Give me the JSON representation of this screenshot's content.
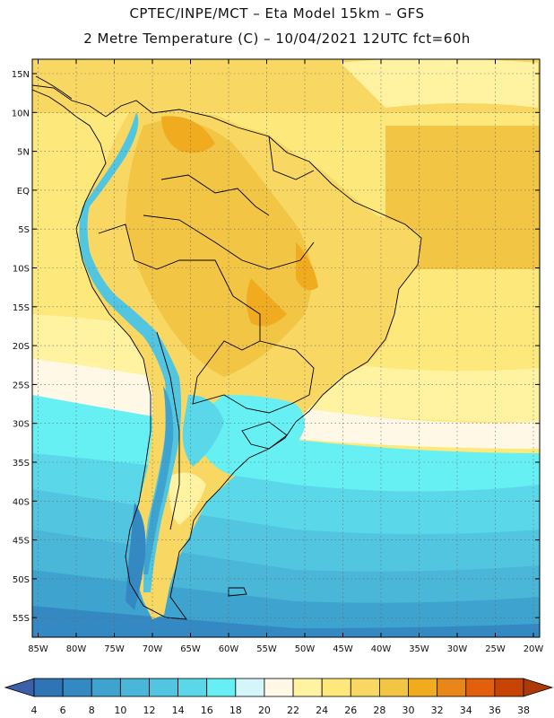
{
  "header": {
    "title_line1": "CPTEC/INPE/MCT –  Eta Model 15km – GFS",
    "title_line2": "2 Metre Temperature (C) – 10/04/2021 12UTC fct=60h"
  },
  "map": {
    "lat_labels": [
      "15N",
      "10N",
      "5N",
      "EQ",
      "5S",
      "10S",
      "15S",
      "20S",
      "25S",
      "30S",
      "35S",
      "40S",
      "45S",
      "50S",
      "55S"
    ],
    "lon_labels": [
      "85W",
      "80W",
      "75W",
      "70W",
      "65W",
      "60W",
      "55W",
      "50W",
      "45W",
      "40W",
      "35W",
      "30W",
      "25W",
      "20W"
    ]
  },
  "colorbar": {
    "labels": [
      "4",
      "6",
      "8",
      "10",
      "12",
      "14",
      "16",
      "18",
      "20",
      "22",
      "24",
      "26",
      "28",
      "30",
      "32",
      "34",
      "36",
      "38"
    ],
    "colors": [
      "#3b5fa8",
      "#2f74b5",
      "#3589c3",
      "#3fa3cf",
      "#4ab6d8",
      "#52c6e0",
      "#5ad8ea",
      "#66f0f4",
      "#d4f6fa",
      "#fff8e6",
      "#fff3a2",
      "#fde87c",
      "#f8d862",
      "#f3c545",
      "#f0ab1f",
      "#e9861a",
      "#e25f0d",
      "#c84405",
      "#ad3a06"
    ]
  }
}
